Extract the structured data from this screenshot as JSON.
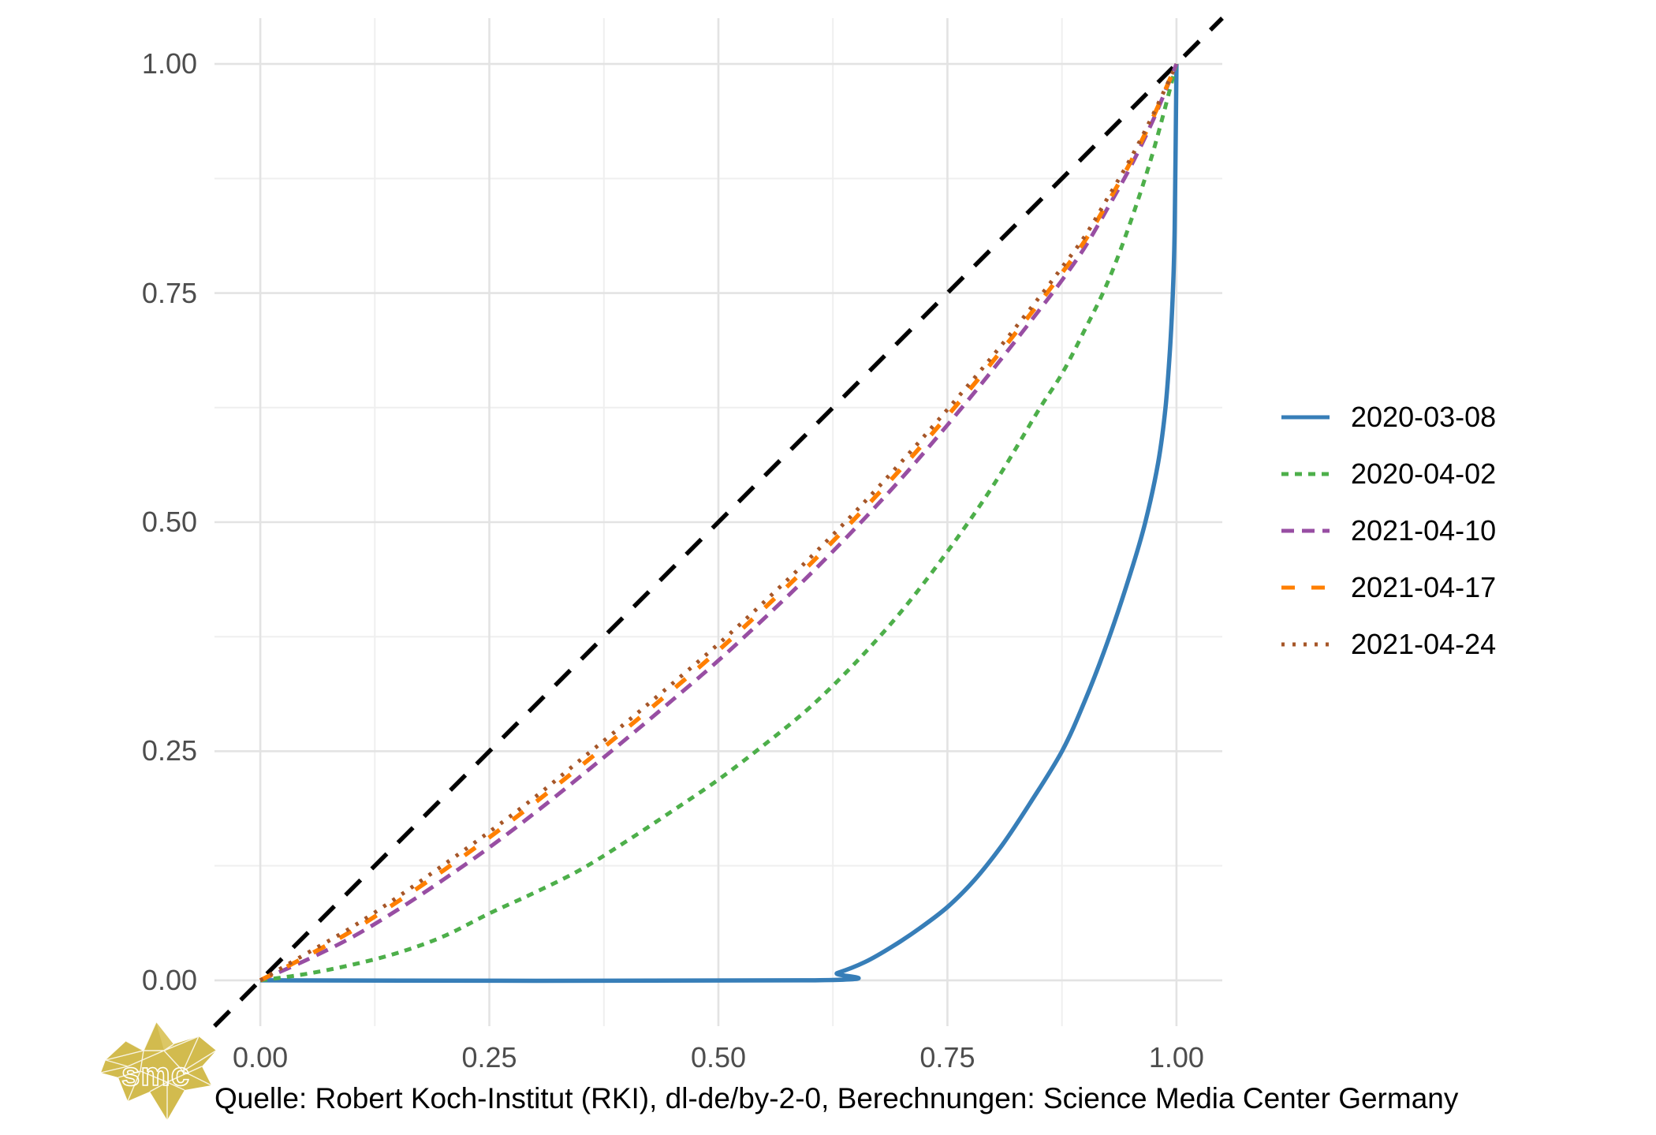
{
  "caption": {
    "text": "Quelle: Robert Koch-Institut (RKI), dl-de/by-2-0, Berechnungen: Science Media Center Germany"
  },
  "logo": {
    "text": "smc",
    "color": "#d2bb4e"
  },
  "legend": {
    "position": "right"
  },
  "chart_data": {
    "type": "line",
    "title": "",
    "xlabel": "",
    "ylabel": "",
    "xlim": [
      -0.05,
      1.05
    ],
    "ylim": [
      -0.05,
      1.05
    ],
    "x_ticks": {
      "labels": [
        "0.00",
        "0.25",
        "0.50",
        "0.75",
        "1.00"
      ],
      "values": [
        0,
        0.25,
        0.5,
        0.75,
        1
      ]
    },
    "y_ticks": {
      "labels": [
        "0.00",
        "0.25",
        "0.50",
        "0.75",
        "1.00"
      ],
      "values": [
        0,
        0.25,
        0.5,
        0.75,
        1
      ]
    },
    "grid": {
      "major_values": [
        0,
        0.25,
        0.5,
        0.75,
        1
      ],
      "minor_values": [
        0.125,
        0.375,
        0.625,
        0.875
      ],
      "major_color": "#e3e3e3",
      "minor_color": "#efefef"
    },
    "reference_line": {
      "name": "equality-diagonal",
      "slope": 1,
      "intercept": 0,
      "color": "#000000",
      "dash": "27 20",
      "width": 5.5
    },
    "series": [
      {
        "name": "2020-03-08",
        "color": "#377EB8",
        "dash": "",
        "width": 5.5,
        "x": [
          0,
          0.6,
          0.63,
          0.66,
          0.69,
          0.72,
          0.75,
          0.78,
          0.81,
          0.84,
          0.875,
          0.9,
          0.925,
          0.95,
          0.966,
          0.98,
          0.988,
          0.993,
          0.996,
          0.998,
          1.0
        ],
        "y": [
          0,
          0,
          0.008,
          0.02,
          0.037,
          0.057,
          0.08,
          0.11,
          0.148,
          0.193,
          0.25,
          0.305,
          0.37,
          0.445,
          0.5,
          0.565,
          0.625,
          0.69,
          0.75,
          0.82,
          1.0
        ]
      },
      {
        "name": "2020-04-02",
        "color": "#4DAF4A",
        "dash": "9 8",
        "width": 5,
        "x": [
          0,
          0.05,
          0.1,
          0.15,
          0.2,
          0.25,
          0.3,
          0.35,
          0.4,
          0.45,
          0.5,
          0.55,
          0.6,
          0.65,
          0.7,
          0.75,
          0.8,
          0.85,
          0.875,
          0.9,
          0.925,
          0.95,
          0.975,
          1.0
        ],
        "y": [
          0,
          0.007,
          0.017,
          0.03,
          0.048,
          0.073,
          0.096,
          0.121,
          0.152,
          0.185,
          0.219,
          0.257,
          0.298,
          0.347,
          0.403,
          0.468,
          0.54,
          0.623,
          0.662,
          0.71,
          0.762,
          0.828,
          0.906,
          1.0
        ]
      },
      {
        "name": "2021-04-10",
        "color": "#984EA3",
        "dash": "16 10",
        "width": 5,
        "x": [
          0,
          0.05,
          0.1,
          0.15,
          0.2,
          0.25,
          0.3,
          0.35,
          0.4,
          0.45,
          0.5,
          0.55,
          0.6,
          0.65,
          0.7,
          0.75,
          0.8,
          0.85,
          0.875,
          0.9,
          0.925,
          0.95,
          0.975,
          1.0
        ],
        "y": [
          0,
          0.022,
          0.047,
          0.077,
          0.11,
          0.145,
          0.183,
          0.223,
          0.264,
          0.306,
          0.349,
          0.395,
          0.443,
          0.494,
          0.548,
          0.606,
          0.667,
          0.731,
          0.764,
          0.8,
          0.843,
          0.888,
          0.94,
          1.0
        ]
      },
      {
        "name": "2021-04-17",
        "color": "#FF7F00",
        "dash": "17 21",
        "width": 5.5,
        "x": [
          0,
          0.05,
          0.1,
          0.15,
          0.2,
          0.25,
          0.3,
          0.35,
          0.4,
          0.45,
          0.5,
          0.55,
          0.6,
          0.65,
          0.7,
          0.75,
          0.8,
          0.85,
          0.875,
          0.9,
          0.925,
          0.95,
          0.975,
          1.0
        ],
        "y": [
          0,
          0.026,
          0.054,
          0.086,
          0.12,
          0.156,
          0.194,
          0.234,
          0.275,
          0.317,
          0.36,
          0.406,
          0.454,
          0.505,
          0.559,
          0.616,
          0.676,
          0.739,
          0.772,
          0.807,
          0.849,
          0.893,
          0.943,
          1.0
        ]
      },
      {
        "name": "2021-04-24",
        "color": "#A65628",
        "dash": "4 10",
        "width": 5,
        "x": [
          0,
          0.05,
          0.1,
          0.15,
          0.2,
          0.25,
          0.3,
          0.35,
          0.4,
          0.45,
          0.5,
          0.55,
          0.6,
          0.65,
          0.7,
          0.75,
          0.8,
          0.85,
          0.875,
          0.9,
          0.925,
          0.95,
          0.975,
          1.0
        ],
        "y": [
          0,
          0.029,
          0.058,
          0.091,
          0.126,
          0.162,
          0.2,
          0.241,
          0.282,
          0.324,
          0.367,
          0.413,
          0.461,
          0.512,
          0.566,
          0.623,
          0.682,
          0.745,
          0.778,
          0.812,
          0.854,
          0.897,
          0.946,
          1.0
        ]
      }
    ]
  }
}
